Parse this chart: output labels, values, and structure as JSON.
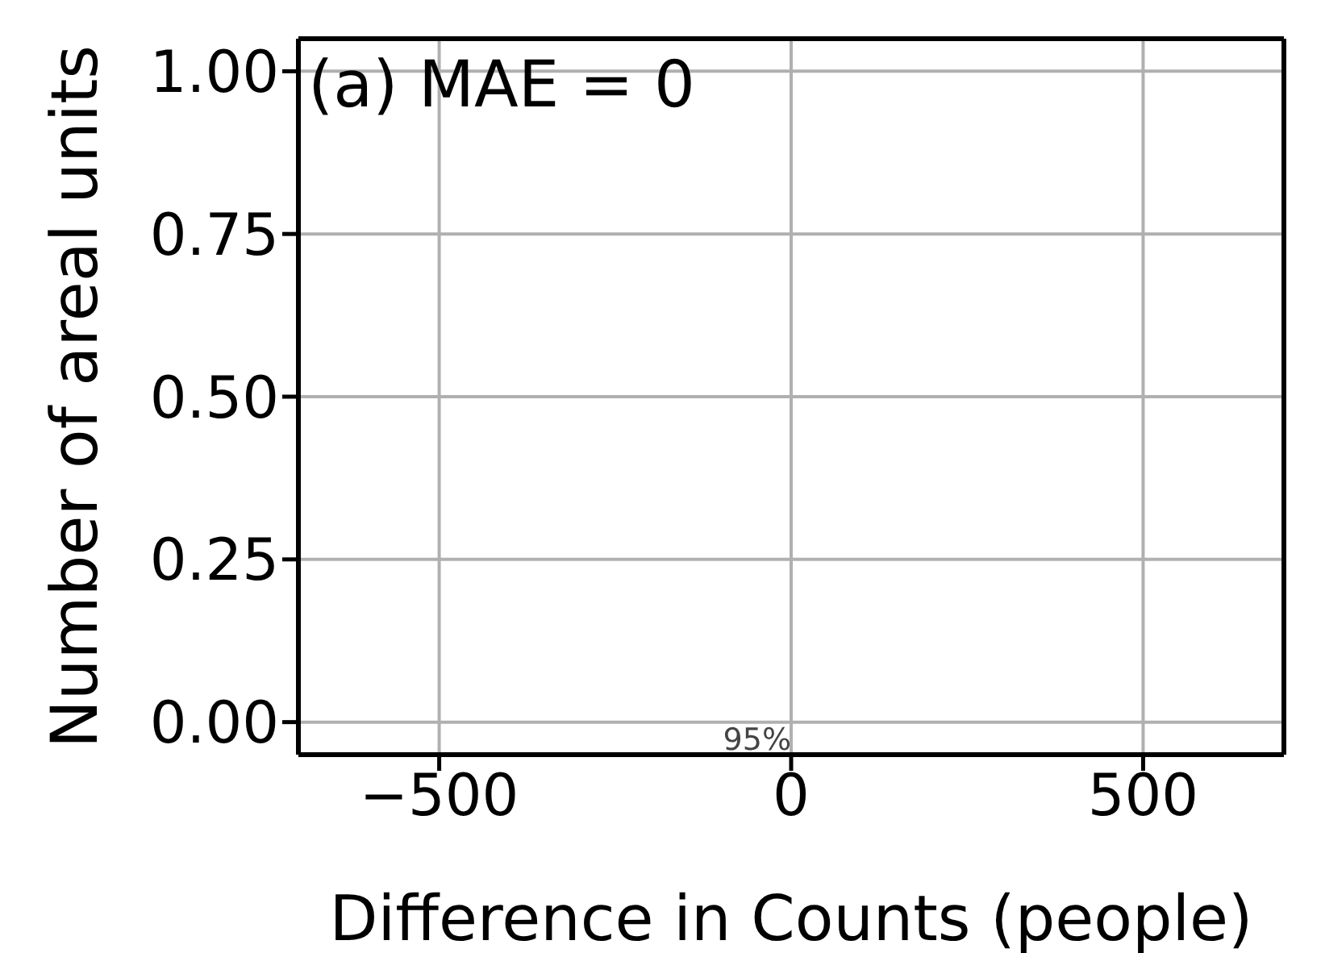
{
  "chart_data": {
    "type": "histogram",
    "xlabel": "Difference in Counts (people)",
    "ylabel": "Number of areal units",
    "xlim": [
      -700,
      700
    ],
    "xticks": [
      {
        "value": -500,
        "label": "−500"
      },
      0,
      500
    ],
    "ylim": [
      -0.05,
      1.05
    ],
    "yticks": [
      {
        "value": 0,
        "label": "0.00"
      },
      {
        "value": 0.25,
        "label": "0.25"
      },
      {
        "value": 0.5,
        "label": "0.50"
      },
      {
        "value": 0.75,
        "label": "0.75"
      },
      {
        "value": 1,
        "label": "1.00"
      }
    ],
    "grid": true,
    "annotations": [
      "(a) MAE = 0",
      "95%"
    ]
  }
}
